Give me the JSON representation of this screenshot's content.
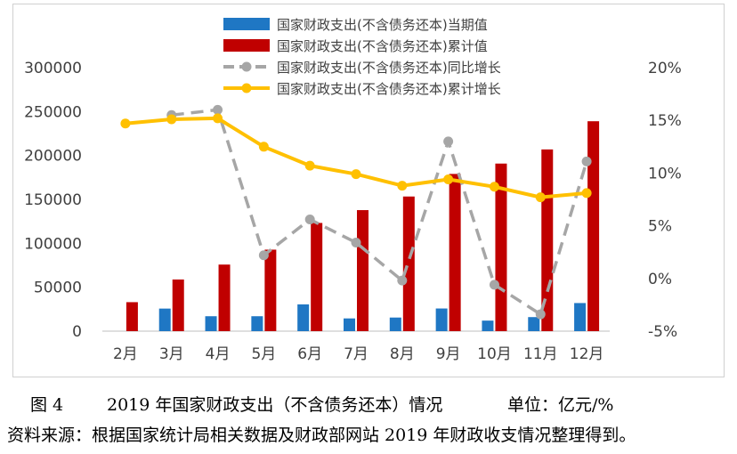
{
  "chart_data": {
    "type": "bar+line",
    "categories": [
      "2月",
      "3月",
      "4月",
      "5月",
      "6月",
      "7月",
      "8月",
      "9月",
      "10月",
      "11月",
      "12月"
    ],
    "bar_series": [
      {
        "name": "国家财政支出(不含债务还本)当期值",
        "color": "#1f77c4",
        "values": [
          null,
          25700,
          17000,
          17000,
          30500,
          14500,
          15500,
          25800,
          12000,
          16000,
          32000
        ]
      },
      {
        "name": "国家财政支出(不含债务还本)累计值",
        "color": "#c00000",
        "values": [
          33000,
          58800,
          75800,
          92800,
          123200,
          137800,
          153300,
          179000,
          190800,
          206900,
          239000
        ]
      }
    ],
    "line_series": [
      {
        "name": "国家财政支出(不含债务还本)同比增长",
        "color": "#a6a6a6",
        "dashed": true,
        "values": [
          null,
          15.5,
          16.0,
          2.2,
          5.6,
          3.4,
          -0.2,
          13.0,
          -0.6,
          -3.4,
          11.1
        ]
      },
      {
        "name": "国家财政支出(不含债务还本)累计增长",
        "color": "#ffc000",
        "dashed": false,
        "values": [
          14.7,
          15.1,
          15.2,
          12.5,
          10.7,
          9.9,
          8.8,
          9.4,
          8.7,
          7.7,
          8.1
        ]
      }
    ],
    "y_left": {
      "min": 0,
      "max": 300000,
      "step": 50000,
      "ticks": [
        "0",
        "50000",
        "100000",
        "150000",
        "200000",
        "250000",
        "300000"
      ]
    },
    "y_right": {
      "min": -5,
      "max": 20,
      "step": 5,
      "ticks": [
        "-5%",
        "0%",
        "5%",
        "10%",
        "15%",
        "20%"
      ]
    },
    "grid": false,
    "legend_position": "top-center"
  },
  "caption": {
    "figure_no": "图 4",
    "title": "2019 年国家财政支出（不含债务还本）情况",
    "unit": "单位：亿元/%"
  },
  "source": "资料来源：根据国家统计局相关数据及财政部网站 2019 年财政收支情况整理得到。"
}
